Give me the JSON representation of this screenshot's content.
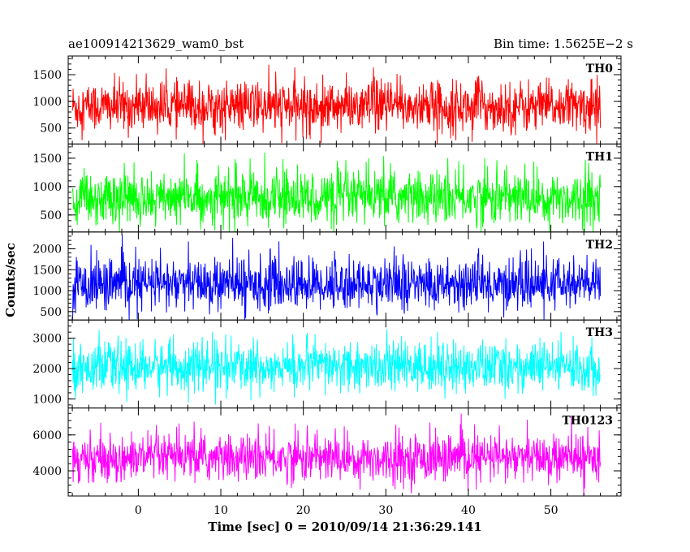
{
  "chart_data": {
    "type": "line",
    "title_left": "ae100914213629_wam0_bst",
    "title_right": "Bin time: 1.5625E−2 s",
    "xlabel": "Time [sec] 0 = 2010/09/14 21:36:29.141",
    "ylabel": "Counts/sec",
    "xlim": [
      -8.5,
      58.5
    ],
    "data_xrange": [
      -8,
      56
    ],
    "x_ticks": [
      0,
      10,
      20,
      30,
      40,
      50
    ],
    "x_tick_labels": [
      "0",
      "10",
      "20",
      "30",
      "40",
      "50"
    ],
    "grid": false,
    "panels": [
      {
        "name": "TH0",
        "color": "#ff0000",
        "ylim": [
          200,
          1850
        ],
        "y_ticks": [
          500,
          1000,
          1500
        ],
        "y_tick_labels": [
          "500",
          "1000",
          "1500"
        ],
        "mean": 900,
        "spread": 480,
        "min_value": 150,
        "max_value": 1850
      },
      {
        "name": "TH1",
        "color": "#00ff00",
        "ylim": [
          200,
          1750
        ],
        "y_ticks": [
          500,
          1000,
          1500
        ],
        "y_tick_labels": [
          "500",
          "1000",
          "1500"
        ],
        "mean": 800,
        "spread": 470,
        "min_value": 150,
        "max_value": 1750
      },
      {
        "name": "TH2",
        "color": "#0000ff",
        "ylim": [
          300,
          2400
        ],
        "y_ticks": [
          500,
          1000,
          1500,
          2000
        ],
        "y_tick_labels": [
          "500",
          "1000",
          "1500",
          "2000"
        ],
        "mean": 1150,
        "spread": 620,
        "min_value": 250,
        "max_value": 2400
      },
      {
        "name": "TH3",
        "color": "#00ffff",
        "ylim": [
          700,
          3600
        ],
        "y_ticks": [
          1000,
          2000,
          3000
        ],
        "y_tick_labels": [
          "1000",
          "2000",
          "3000"
        ],
        "mean": 2050,
        "spread": 820,
        "min_value": 650,
        "max_value": 3600
      },
      {
        "name": "TH0123",
        "color": "#ff00ff",
        "ylim": [
          2600,
          7500
        ],
        "y_ticks": [
          4000,
          6000
        ],
        "y_tick_labels": [
          "4000",
          "6000"
        ],
        "mean": 4700,
        "spread": 1300,
        "min_value": 2600,
        "max_value": 7500
      }
    ]
  }
}
